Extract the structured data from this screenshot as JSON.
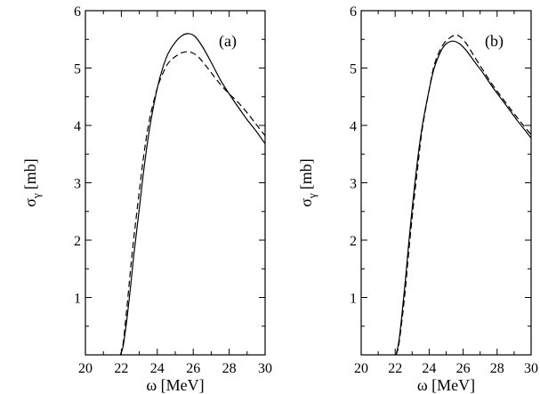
{
  "chart_data": [
    {
      "type": "line",
      "panel_label": "(a)",
      "xlabel": "ω [MeV]",
      "ylabel_main": "σ",
      "ylabel_sub": "γ",
      "ylabel_unit": "[mb]",
      "xlim": [
        20,
        30
      ],
      "ylim": [
        0,
        6
      ],
      "xticks": [
        20,
        22,
        24,
        26,
        28,
        30
      ],
      "yticks": [
        1,
        2,
        3,
        4,
        5,
        6
      ],
      "series": [
        {
          "name": "solid",
          "style": "solid",
          "x": [
            21.95,
            22.1,
            22.3,
            22.5,
            22.7,
            23.0,
            23.3,
            23.6,
            24.0,
            24.3,
            24.6,
            25.0,
            25.4,
            25.75,
            26.1,
            26.5,
            27.0,
            27.5,
            28.0,
            28.5,
            29.0,
            29.5,
            30.0
          ],
          "y": [
            0.0,
            0.15,
            0.6,
            1.15,
            1.75,
            2.55,
            3.35,
            4.0,
            4.65,
            5.0,
            5.25,
            5.45,
            5.57,
            5.6,
            5.55,
            5.38,
            5.1,
            4.8,
            4.55,
            4.32,
            4.1,
            3.9,
            3.68
          ]
        },
        {
          "name": "dashed",
          "style": "dashed",
          "x": [
            21.95,
            22.1,
            22.3,
            22.5,
            22.7,
            23.0,
            23.3,
            23.6,
            24.0,
            24.3,
            24.6,
            25.0,
            25.4,
            25.8,
            26.2,
            26.6,
            27.0,
            27.5,
            28.0,
            28.5,
            29.0,
            29.5,
            30.0
          ],
          "y": [
            0.0,
            0.2,
            0.8,
            1.45,
            2.05,
            2.85,
            3.6,
            4.15,
            4.65,
            4.9,
            5.08,
            5.2,
            5.27,
            5.28,
            5.22,
            5.08,
            4.92,
            4.72,
            4.55,
            4.4,
            4.22,
            4.02,
            3.82
          ]
        }
      ]
    },
    {
      "type": "line",
      "panel_label": "(b)",
      "xlabel": "ω [MeV]",
      "ylabel_main": "σ",
      "ylabel_sub": "γ",
      "ylabel_unit": "[mb]",
      "xlim": [
        20,
        30
      ],
      "ylim": [
        0,
        6
      ],
      "xticks": [
        20,
        22,
        24,
        26,
        28,
        30
      ],
      "yticks": [
        1,
        2,
        3,
        4,
        5,
        6
      ],
      "series": [
        {
          "name": "solid",
          "style": "solid",
          "x": [
            22.05,
            22.2,
            22.4,
            22.6,
            22.8,
            23.0,
            23.3,
            23.6,
            24.0,
            24.3,
            24.7,
            25.0,
            25.4,
            25.8,
            26.2,
            26.7,
            27.2,
            27.7,
            28.2,
            28.7,
            29.2,
            29.6,
            30.0
          ],
          "y": [
            0.0,
            0.2,
            0.7,
            1.3,
            1.95,
            2.55,
            3.35,
            4.0,
            4.62,
            5.0,
            5.3,
            5.42,
            5.47,
            5.42,
            5.3,
            5.1,
            4.9,
            4.68,
            4.48,
            4.28,
            4.08,
            3.93,
            3.78
          ]
        },
        {
          "name": "dashed",
          "style": "dashed",
          "x": [
            22.05,
            22.2,
            22.4,
            22.6,
            22.8,
            23.0,
            23.3,
            23.6,
            24.0,
            24.3,
            24.7,
            25.1,
            25.5,
            25.8,
            26.2,
            26.7,
            27.2,
            27.7,
            28.2,
            28.7,
            29.2,
            29.6,
            30.0
          ],
          "y": [
            0.0,
            0.15,
            0.6,
            1.15,
            1.8,
            2.4,
            3.2,
            3.95,
            4.62,
            5.05,
            5.35,
            5.5,
            5.57,
            5.55,
            5.42,
            5.18,
            4.95,
            4.72,
            4.52,
            4.32,
            4.13,
            3.98,
            3.84
          ]
        }
      ]
    }
  ]
}
